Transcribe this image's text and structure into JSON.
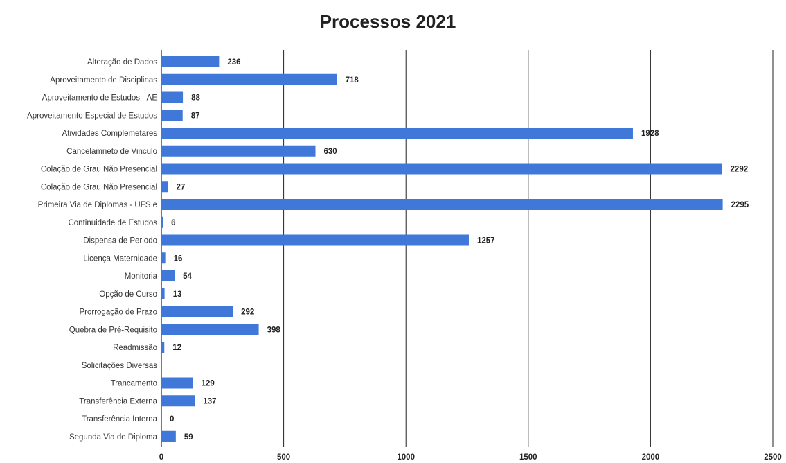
{
  "chart_data": {
    "type": "bar",
    "orientation": "horizontal",
    "title": "Processos 2021",
    "xlabel": "",
    "ylabel": "",
    "xlim": [
      0,
      2500
    ],
    "xticks": [
      0,
      500,
      1000,
      1500,
      2000,
      2500
    ],
    "grid": true,
    "bar_color": "#3f78d8",
    "categories": [
      "Alteração de Dados",
      "Aproveitamento de Disciplinas",
      "Aproveitamento de Estudos - AE",
      "Aproveitamento Especial de Estudos",
      "Atividades Complemetares",
      "Cancelamneto de Vinculo",
      "Colação de Grau Não Presencial",
      "Colação de Grau Não Presencial",
      "Primeira Via de Diplomas - UFS e",
      "Continuidade de Estudos",
      "Dispensa de Periodo",
      "Licença Maternidade",
      "Monitoria",
      "Opção de Curso",
      "Prorrogação de Prazo",
      "Quebra de Pré-Requisito",
      "Readmissão",
      "Solicitações Diversas",
      "Trancamento",
      "Transferência Externa",
      "Transferência Interna",
      "Segunda Via de Diploma"
    ],
    "values": [
      236,
      718,
      88,
      87,
      1928,
      630,
      2292,
      27,
      2295,
      6,
      1257,
      16,
      54,
      13,
      292,
      398,
      12,
      null,
      129,
      137,
      0,
      59
    ],
    "value_labels": [
      "236",
      "718",
      "88",
      "87",
      "1928",
      "630",
      "2292",
      "27",
      "2295",
      "6",
      "1257",
      "16",
      "54",
      "13",
      "292",
      "398",
      "12",
      "",
      "129",
      "137",
      "0",
      "59"
    ]
  }
}
